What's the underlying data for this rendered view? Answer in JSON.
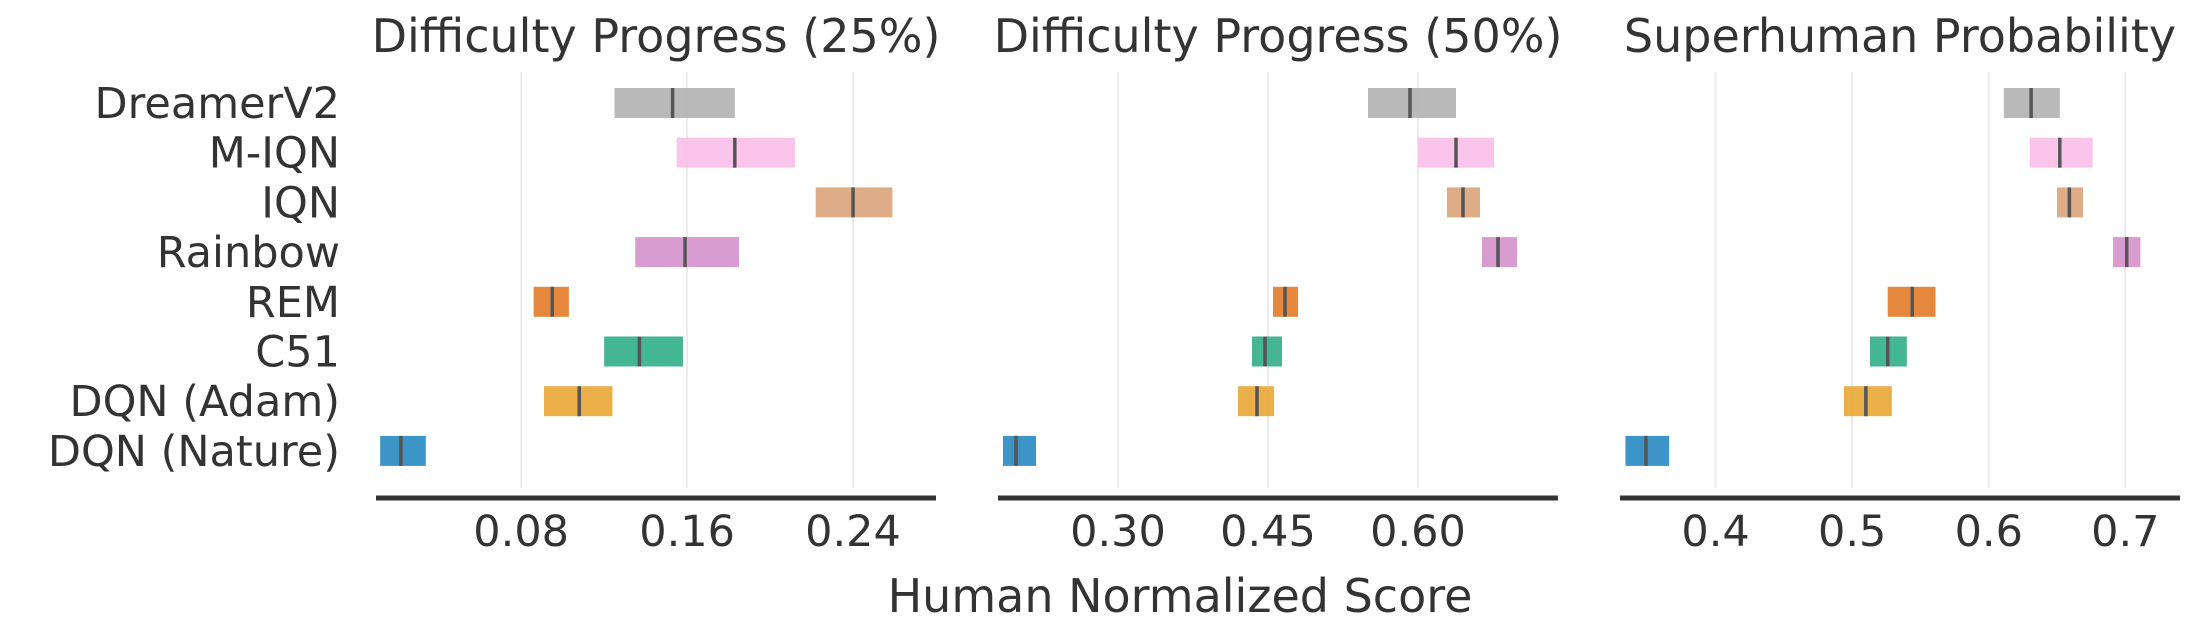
{
  "chart_data": {
    "type": "interval",
    "algorithms": [
      "DreamerV2",
      "M-IQN",
      "IQN",
      "Rainbow",
      "REM",
      "C51",
      "DQN (Adam)",
      "DQN (Nature)"
    ],
    "colors": {
      "DreamerV2": "#b3b3b3",
      "M-IQN": "#fbbfe8",
      "IQN": "#dca57e",
      "Rainbow": "#d694cc",
      "REM": "#e37e2d",
      "C51": "#35b08a",
      "DQN (Adam)": "#e8a837",
      "DQN (Nature)": "#2c8bc1"
    },
    "xlabel": "Human Normalized Score",
    "panels": [
      {
        "title": "Difficulty Progress (25%)",
        "xlim": [
          0.01,
          0.28
        ],
        "ticks": [
          0.08,
          0.16,
          0.24
        ],
        "tick_labels": [
          "0.08",
          "0.16",
          "0.24"
        ],
        "intervals": [
          {
            "algo": "DreamerV2",
            "low": 0.125,
            "high": 0.183,
            "point": 0.153
          },
          {
            "algo": "M-IQN",
            "low": 0.155,
            "high": 0.212,
            "point": 0.183
          },
          {
            "algo": "IQN",
            "low": 0.222,
            "high": 0.259,
            "point": 0.24
          },
          {
            "algo": "Rainbow",
            "low": 0.135,
            "high": 0.185,
            "point": 0.159
          },
          {
            "algo": "REM",
            "low": 0.086,
            "high": 0.103,
            "point": 0.095
          },
          {
            "algo": "C51",
            "low": 0.12,
            "high": 0.158,
            "point": 0.137
          },
          {
            "algo": "DQN (Adam)",
            "low": 0.091,
            "high": 0.124,
            "point": 0.108
          },
          {
            "algo": "DQN (Nature)",
            "low": 0.012,
            "high": 0.034,
            "point": 0.022
          }
        ]
      },
      {
        "title": "Difficulty Progress (50%)",
        "xlim": [
          0.18,
          0.74
        ],
        "ticks": [
          0.3,
          0.45,
          0.6
        ],
        "tick_labels": [
          "0.30",
          "0.45",
          "0.60"
        ],
        "intervals": [
          {
            "algo": "DreamerV2",
            "low": 0.55,
            "high": 0.638,
            "point": 0.592
          },
          {
            "algo": "M-IQN",
            "low": 0.6,
            "high": 0.676,
            "point": 0.638
          },
          {
            "algo": "IQN",
            "low": 0.629,
            "high": 0.662,
            "point": 0.645
          },
          {
            "algo": "Rainbow",
            "low": 0.664,
            "high": 0.699,
            "point": 0.68
          },
          {
            "algo": "REM",
            "low": 0.455,
            "high": 0.48,
            "point": 0.467
          },
          {
            "algo": "C51",
            "low": 0.434,
            "high": 0.464,
            "point": 0.447
          },
          {
            "algo": "DQN (Adam)",
            "low": 0.42,
            "high": 0.456,
            "point": 0.439
          },
          {
            "algo": "DQN (Nature)",
            "low": 0.185,
            "high": 0.218,
            "point": 0.198
          }
        ]
      },
      {
        "title": "Superhuman Probability",
        "xlim": [
          0.33,
          0.74
        ],
        "ticks": [
          0.4,
          0.5,
          0.6,
          0.7
        ],
        "tick_labels": [
          "0.4",
          "0.5",
          "0.6",
          "0.7"
        ],
        "intervals": [
          {
            "algo": "DreamerV2",
            "low": 0.611,
            "high": 0.652,
            "point": 0.631
          },
          {
            "algo": "M-IQN",
            "low": 0.63,
            "high": 0.676,
            "point": 0.652
          },
          {
            "algo": "IQN",
            "low": 0.65,
            "high": 0.669,
            "point": 0.659
          },
          {
            "algo": "Rainbow",
            "low": 0.691,
            "high": 0.711,
            "point": 0.701
          },
          {
            "algo": "REM",
            "low": 0.526,
            "high": 0.561,
            "point": 0.544
          },
          {
            "algo": "C51",
            "low": 0.513,
            "high": 0.54,
            "point": 0.526
          },
          {
            "algo": "DQN (Adam)",
            "low": 0.494,
            "high": 0.529,
            "point": 0.51
          },
          {
            "algo": "DQN (Nature)",
            "low": 0.334,
            "high": 0.366,
            "point": 0.349
          }
        ]
      }
    ]
  }
}
